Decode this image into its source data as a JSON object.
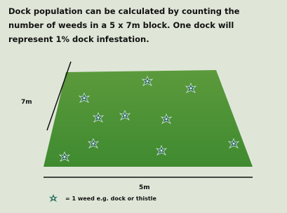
{
  "header": {
    "lines": [
      "Dock population can be calculated by counting the",
      "number of weeds in a 5 x 7m block. One dock will",
      "represent 1% dock infestation."
    ]
  },
  "diagram": {
    "side_label": "7m",
    "bottom_label": "5m"
  },
  "legend": {
    "text": "= 1 weed e.g. dock or thistle"
  }
}
